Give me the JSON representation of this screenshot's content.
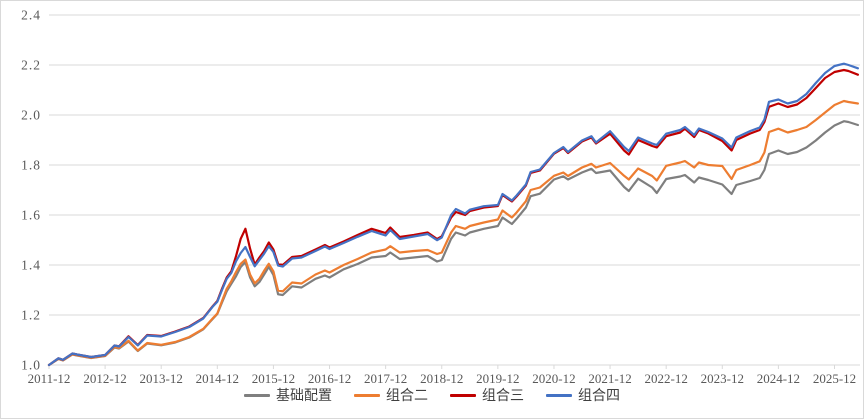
{
  "chart_data": {
    "type": "line",
    "title": "",
    "xlabel": "",
    "ylabel": "",
    "grid": true,
    "legend_position": "bottom",
    "ylim": [
      1.0,
      2.4
    ],
    "y_ticks": [
      1.0,
      1.2,
      1.4,
      1.6,
      1.8,
      2.0,
      2.2,
      2.4
    ],
    "x_tick_labels": [
      "2011-12",
      "2012-12",
      "2013-12",
      "2014-12",
      "2015-12",
      "2016-12",
      "2017-12",
      "2018-12",
      "2019-12",
      "2020-12",
      "2021-12",
      "2022-12",
      "2023-12",
      "2024-12",
      "2025-12"
    ],
    "x_tick_months": [
      0,
      12,
      24,
      36,
      48,
      60,
      72,
      84,
      96,
      108,
      120,
      132,
      144,
      156,
      168
    ],
    "x_unit": "months since 2011-12",
    "x_domain": [
      0,
      173
    ],
    "colors": {
      "grid": "#d9d9d9",
      "axis_text": "#595959",
      "legend_text": "#404040",
      "background": "#ffffff"
    },
    "x": [
      0,
      2,
      3,
      5,
      6,
      9,
      12,
      14,
      15,
      17,
      19,
      21,
      24,
      27,
      30,
      33,
      35,
      36,
      37,
      38,
      39,
      40,
      41,
      42,
      43,
      44,
      45,
      46,
      47,
      48,
      49,
      50,
      52,
      54,
      57,
      59,
      60,
      63,
      66,
      69,
      72,
      73,
      75,
      78,
      81,
      83,
      84,
      86,
      87,
      89,
      90,
      93,
      96,
      97,
      99,
      100,
      102,
      103,
      105,
      108,
      110,
      111,
      114,
      116,
      117,
      120,
      123,
      124,
      126,
      129,
      130,
      132,
      135,
      136,
      138,
      139,
      141,
      144,
      146,
      147,
      150,
      152,
      153,
      154,
      156,
      158,
      160,
      162,
      164,
      166,
      168,
      170,
      171,
      173
    ],
    "series": [
      {
        "name": "基础配置",
        "color": "#7f7f7f",
        "values": [
          1.0,
          1.024,
          1.018,
          1.042,
          1.038,
          1.028,
          1.036,
          1.07,
          1.066,
          1.094,
          1.056,
          1.086,
          1.079,
          1.09,
          1.11,
          1.143,
          1.184,
          1.204,
          1.25,
          1.295,
          1.325,
          1.355,
          1.392,
          1.412,
          1.35,
          1.315,
          1.332,
          1.362,
          1.393,
          1.36,
          1.283,
          1.28,
          1.315,
          1.31,
          1.345,
          1.358,
          1.35,
          1.383,
          1.404,
          1.43,
          1.436,
          1.45,
          1.424,
          1.43,
          1.436,
          1.414,
          1.42,
          1.505,
          1.53,
          1.518,
          1.53,
          1.545,
          1.556,
          1.59,
          1.564,
          1.585,
          1.63,
          1.675,
          1.685,
          1.742,
          1.755,
          1.742,
          1.77,
          1.785,
          1.768,
          1.778,
          1.712,
          1.696,
          1.745,
          1.71,
          1.688,
          1.744,
          1.754,
          1.76,
          1.73,
          1.75,
          1.74,
          1.722,
          1.684,
          1.72,
          1.736,
          1.748,
          1.78,
          1.844,
          1.858,
          1.844,
          1.852,
          1.87,
          1.898,
          1.93,
          1.958,
          1.975,
          1.972,
          1.96
        ]
      },
      {
        "name": "组合二",
        "color": "#ed7d31",
        "values": [
          1.0,
          1.025,
          1.019,
          1.043,
          1.039,
          1.029,
          1.037,
          1.072,
          1.068,
          1.097,
          1.058,
          1.088,
          1.081,
          1.092,
          1.112,
          1.145,
          1.186,
          1.206,
          1.256,
          1.305,
          1.335,
          1.372,
          1.405,
          1.422,
          1.362,
          1.327,
          1.345,
          1.377,
          1.405,
          1.375,
          1.298,
          1.295,
          1.33,
          1.326,
          1.362,
          1.378,
          1.37,
          1.4,
          1.424,
          1.45,
          1.462,
          1.475,
          1.45,
          1.456,
          1.46,
          1.444,
          1.45,
          1.53,
          1.556,
          1.545,
          1.556,
          1.57,
          1.582,
          1.618,
          1.59,
          1.61,
          1.655,
          1.7,
          1.71,
          1.757,
          1.77,
          1.756,
          1.79,
          1.805,
          1.79,
          1.808,
          1.757,
          1.742,
          1.786,
          1.756,
          1.738,
          1.797,
          1.81,
          1.816,
          1.79,
          1.81,
          1.8,
          1.796,
          1.744,
          1.78,
          1.8,
          1.815,
          1.85,
          1.932,
          1.945,
          1.93,
          1.94,
          1.952,
          1.98,
          2.01,
          2.04,
          2.056,
          2.052,
          2.046
        ]
      },
      {
        "name": "组合三",
        "color": "#c00000",
        "values": [
          1.0,
          1.027,
          1.021,
          1.046,
          1.042,
          1.032,
          1.04,
          1.078,
          1.075,
          1.115,
          1.08,
          1.12,
          1.116,
          1.134,
          1.154,
          1.188,
          1.235,
          1.256,
          1.305,
          1.35,
          1.375,
          1.435,
          1.505,
          1.545,
          1.465,
          1.402,
          1.43,
          1.455,
          1.49,
          1.462,
          1.404,
          1.4,
          1.432,
          1.436,
          1.462,
          1.48,
          1.47,
          1.494,
          1.52,
          1.545,
          1.528,
          1.55,
          1.512,
          1.52,
          1.53,
          1.504,
          1.515,
          1.59,
          1.612,
          1.6,
          1.616,
          1.63,
          1.636,
          1.68,
          1.654,
          1.674,
          1.718,
          1.768,
          1.778,
          1.845,
          1.868,
          1.848,
          1.894,
          1.91,
          1.886,
          1.925,
          1.858,
          1.842,
          1.9,
          1.876,
          1.87,
          1.915,
          1.93,
          1.945,
          1.912,
          1.94,
          1.926,
          1.896,
          1.858,
          1.9,
          1.926,
          1.94,
          1.972,
          2.033,
          2.046,
          2.032,
          2.042,
          2.068,
          2.108,
          2.148,
          2.172,
          2.18,
          2.176,
          2.161
        ]
      },
      {
        "name": "组合四",
        "color": "#4472c4",
        "values": [
          1.0,
          1.027,
          1.021,
          1.046,
          1.042,
          1.032,
          1.04,
          1.078,
          1.074,
          1.112,
          1.078,
          1.118,
          1.114,
          1.132,
          1.152,
          1.186,
          1.233,
          1.253,
          1.3,
          1.345,
          1.368,
          1.415,
          1.448,
          1.472,
          1.432,
          1.395,
          1.42,
          1.445,
          1.475,
          1.452,
          1.398,
          1.394,
          1.426,
          1.43,
          1.456,
          1.474,
          1.464,
          1.488,
          1.513,
          1.536,
          1.518,
          1.54,
          1.504,
          1.514,
          1.524,
          1.499,
          1.51,
          1.6,
          1.624,
          1.606,
          1.621,
          1.635,
          1.64,
          1.684,
          1.658,
          1.678,
          1.722,
          1.772,
          1.782,
          1.848,
          1.872,
          1.852,
          1.898,
          1.915,
          1.89,
          1.935,
          1.872,
          1.856,
          1.91,
          1.886,
          1.88,
          1.925,
          1.94,
          1.952,
          1.92,
          1.946,
          1.932,
          1.906,
          1.87,
          1.91,
          1.936,
          1.95,
          1.982,
          2.053,
          2.062,
          2.046,
          2.056,
          2.084,
          2.128,
          2.168,
          2.196,
          2.205,
          2.2,
          2.187
        ]
      }
    ]
  },
  "legend": {
    "items": [
      {
        "label": "基础配置"
      },
      {
        "label": "组合二"
      },
      {
        "label": "组合三"
      },
      {
        "label": "组合四"
      }
    ]
  }
}
